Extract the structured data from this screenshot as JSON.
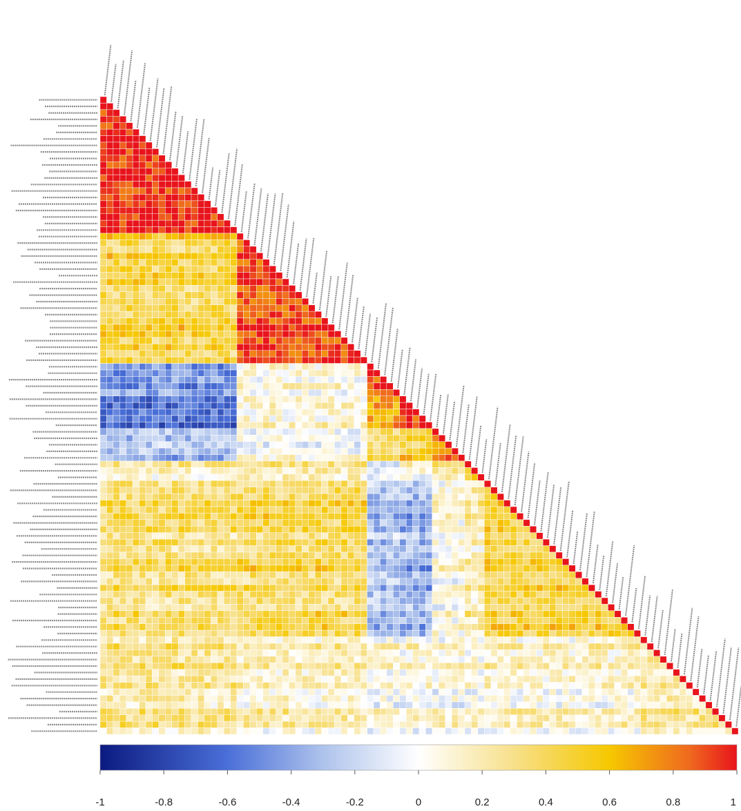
{
  "chart_data": {
    "type": "heatmap",
    "subtype": "lower-triangular correlation matrix",
    "title": "",
    "xlabel": "",
    "ylabel": "",
    "n_variables": 98,
    "variable_labels_legible": false,
    "block_structure": [
      {
        "name": "block-1",
        "start": 0,
        "end": 21
      },
      {
        "name": "block-2",
        "start": 21,
        "end": 41
      },
      {
        "name": "block-3",
        "start": 41,
        "end": 46
      },
      {
        "name": "block-4",
        "start": 46,
        "end": 51
      },
      {
        "name": "block-5",
        "start": 51,
        "end": 56
      },
      {
        "name": "block-6",
        "start": 56,
        "end": 59
      },
      {
        "name": "block-7",
        "start": 59,
        "end": 83
      },
      {
        "name": "block-8",
        "start": 83,
        "end": 98
      }
    ],
    "block_mean_correlations": [
      [
        0.95,
        0.45,
        -0.45,
        -0.55,
        -0.35,
        0.15,
        0.35,
        0.25
      ],
      [
        0.45,
        0.9,
        0.05,
        0.05,
        0.05,
        0.2,
        0.4,
        0.15
      ],
      [
        -0.45,
        0.05,
        0.9,
        0.6,
        0.4,
        -0.1,
        -0.3,
        0.05
      ],
      [
        -0.55,
        0.05,
        0.6,
        0.9,
        0.55,
        0.05,
        -0.35,
        0.05
      ],
      [
        -0.35,
        0.05,
        0.4,
        0.55,
        0.8,
        0.25,
        0.05,
        0.05
      ],
      [
        0.15,
        0.2,
        -0.1,
        0.05,
        0.25,
        0.6,
        0.2,
        0.05
      ],
      [
        0.35,
        0.4,
        -0.3,
        -0.35,
        0.05,
        0.2,
        0.45,
        0.1
      ],
      [
        0.25,
        0.15,
        0.05,
        0.05,
        0.05,
        0.05,
        0.1,
        0.2
      ]
    ],
    "color_scale": {
      "min": -1,
      "max": 1,
      "ticks": [
        "-1",
        "-0.8",
        "-0.6",
        "-0.4",
        "-0.2",
        "0",
        "0.2",
        "0.4",
        "0.6",
        "0.8",
        "1"
      ],
      "stops": [
        {
          "value": -1.0,
          "color": "#0b1a80"
        },
        {
          "value": -0.6,
          "color": "#4a6fd8"
        },
        {
          "value": -0.3,
          "color": "#aec3ec"
        },
        {
          "value": 0.0,
          "color": "#ffffff"
        },
        {
          "value": 0.3,
          "color": "#f7e08a"
        },
        {
          "value": 0.6,
          "color": "#f6c800"
        },
        {
          "value": 0.85,
          "color": "#ef6a1e"
        },
        {
          "value": 1.0,
          "color": "#e8141c"
        }
      ]
    },
    "legend_position": "bottom",
    "grid_color": "#ffffff"
  }
}
